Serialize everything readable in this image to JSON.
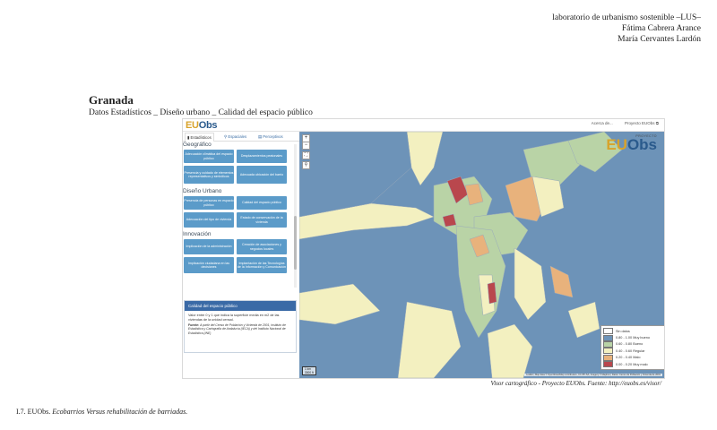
{
  "header": {
    "line1": "laboratorio de urbanismo sostenible –LUS–",
    "line2": "Fátima Cabrera Arance",
    "line3": "María Cervantes Lardón"
  },
  "title": "Granada",
  "subtitle": "Datos Estadísticos _ Diseño urbano _ Calidad del espacio público",
  "app": {
    "logo_eu": "EU",
    "logo_obs": "Obs",
    "links": [
      "Acerca de...",
      "Proyecto EUObs ⧉"
    ],
    "tabs": [
      {
        "label": "▮ Estadísticos",
        "active": true
      },
      {
        "label": "⚲ Espaciales",
        "active": false
      },
      {
        "label": "▤ Perceptivos",
        "active": false
      }
    ],
    "sections": {
      "geografico": {
        "label": "Geográfico",
        "buttons": [
          "Adecuación climática del espacio público",
          "Desplazamientos peatonales",
          "Presencia y cuidado de elementos representativos y simbólicos",
          "Adecuada ubicación del barrio"
        ]
      },
      "diseno": {
        "label": "Diseño Urbano",
        "buttons": [
          "Presencia de personas en espacio público",
          "Calidad del espacio público",
          "Adecuación del tipo de vivienda",
          "Estado de conservación de la vivienda"
        ]
      },
      "innovacion": {
        "label": "Innovación",
        "buttons": [
          "Implicación de la administración",
          "Creación de asociaciones y negocios locales",
          "Implicación ciudadana en las decisiones",
          "Implantación de las Tecnologías de la Información y Comunicación"
        ]
      }
    },
    "info": {
      "title": "Calidad del espacio público",
      "text": "Valor entre 0 y 1 que indica la superficie media en m2 de las viviendas de la unidad censal.",
      "source_label": "Fuente:",
      "source": "A partir del Censo de Población y Vivienda de 2001, Instituto de Estadística y Cartografía de Andalucía (IECA) y del Instituto Nacional de Estadística (INE)"
    },
    "map": {
      "zoom_in": "+",
      "zoom_out": "−",
      "logo_project": "PROYECTO",
      "logo_eu": "EU",
      "logo_obs": "Obs",
      "scale": "1 km",
      "scale2": "3000 ft",
      "attribution": "Leaflet | Map data © OpenStreetMap contributors, CC-BY-SA, Imagery © Mapbox | Datos: Censo de Población y Vivienda de 2001",
      "legend": [
        {
          "label": "Sin datos",
          "color": "#ffffff"
        },
        {
          "label": "0.80 - 1.00 Muy bueno",
          "color": "#6d93b8"
        },
        {
          "label": "0.60 - 0.80 Bueno",
          "color": "#b9d3a6"
        },
        {
          "label": "0.40 - 0.60 Regular",
          "color": "#f3f0c0"
        },
        {
          "label": "0.20 - 0.40 Malo",
          "color": "#e8b27c"
        },
        {
          "label": "0.00 - 0.20 Muy malo",
          "color": "#b9474d"
        }
      ]
    }
  },
  "caption": "Visor cartográfico - Proyecto EUObs. Fuente: http://euobs.es/visor/",
  "footer": {
    "prefix": "I.7. EUObs.",
    "italic": "Ecobarrios Versus rehabilitación de barriadas."
  }
}
